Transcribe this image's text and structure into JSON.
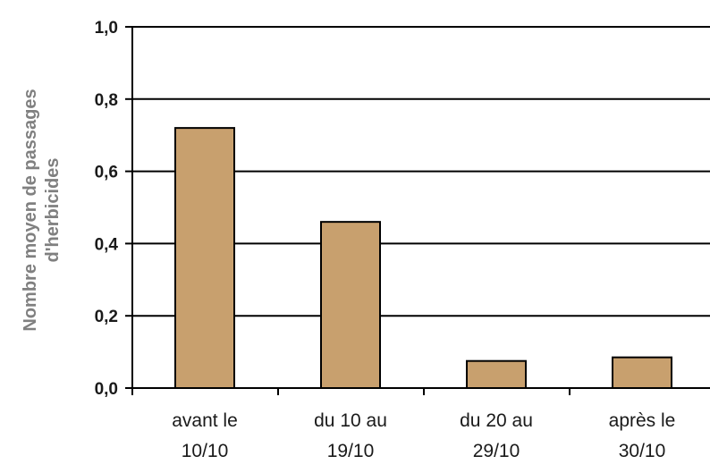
{
  "chart_data": {
    "type": "bar",
    "categories": [
      [
        "avant le",
        "10/10"
      ],
      [
        "du 10 au",
        "19/10"
      ],
      [
        "du 20 au",
        "29/10"
      ],
      [
        "après le",
        "30/10"
      ]
    ],
    "values": [
      0.72,
      0.46,
      0.075,
      0.085
    ],
    "ylabel": [
      "Nombre moyen de passages",
      "d'herbicides"
    ],
    "xlabel": "",
    "title": "",
    "ylim": [
      0,
      1.0
    ],
    "yticks": [
      0.0,
      0.2,
      0.4,
      0.6,
      0.8,
      1.0
    ],
    "ytick_labels": [
      "0,0",
      "0,2",
      "0,4",
      "0,6",
      "0,8",
      "1,0"
    ],
    "grid": "horizontal",
    "bar_color": "#c8a06e",
    "bar_edge_color": "#000000"
  }
}
